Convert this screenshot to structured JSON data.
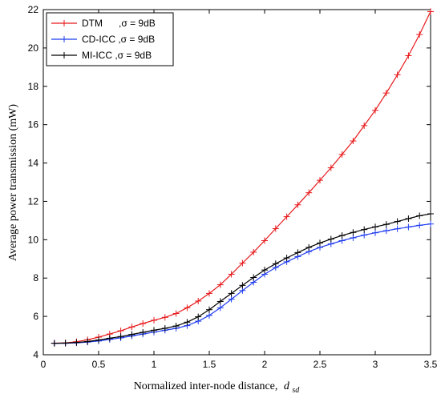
{
  "chart_data": {
    "type": "line",
    "xlabel": "Normalized inter-node distance,",
    "xlabel_symbol": "d",
    "xlabel_subscript": "sd",
    "ylabel": "Average power transmission (mW)",
    "xlim": [
      0,
      3.5
    ],
    "ylim": [
      4,
      22
    ],
    "xticks": [
      0,
      0.5,
      1,
      1.5,
      2,
      2.5,
      3,
      3.5
    ],
    "xtick_labels": [
      "0",
      "0.5",
      "1",
      "1.5",
      "2",
      "2.5",
      "3",
      "3.5"
    ],
    "yticks": [
      4,
      6,
      8,
      10,
      12,
      14,
      16,
      18,
      20,
      22
    ],
    "ytick_labels": [
      "4",
      "6",
      "8",
      "10",
      "12",
      "14",
      "16",
      "18",
      "20",
      "22"
    ],
    "grid": false,
    "legend_position": "top-left",
    "x": [
      0.1,
      0.2,
      0.3,
      0.4,
      0.5,
      0.6,
      0.7,
      0.8,
      0.9,
      1.0,
      1.1,
      1.2,
      1.3,
      1.4,
      1.5,
      1.6,
      1.7,
      1.8,
      1.9,
      2.0,
      2.1,
      2.2,
      2.3,
      2.4,
      2.5,
      2.6,
      2.7,
      2.8,
      2.9,
      3.0,
      3.1,
      3.2,
      3.3,
      3.4,
      3.5
    ],
    "series": [
      {
        "name": "DTM      ,σ = 9dB",
        "color": "#e8191b",
        "values": [
          4.6,
          4.62,
          4.68,
          4.78,
          4.92,
          5.08,
          5.25,
          5.45,
          5.63,
          5.8,
          5.95,
          6.15,
          6.45,
          6.8,
          7.2,
          7.65,
          8.2,
          8.78,
          9.35,
          9.95,
          10.58,
          11.2,
          11.82,
          12.45,
          13.1,
          13.75,
          14.45,
          15.15,
          15.95,
          16.75,
          17.65,
          18.6,
          19.6,
          20.7,
          21.9
        ]
      },
      {
        "name": "CD-ICC ,σ = 9dB",
        "color": "#1f3cf0",
        "values": [
          4.6,
          4.6,
          4.62,
          4.66,
          4.72,
          4.8,
          4.88,
          4.98,
          5.08,
          5.18,
          5.28,
          5.38,
          5.52,
          5.75,
          6.05,
          6.45,
          6.9,
          7.35,
          7.78,
          8.2,
          8.55,
          8.85,
          9.12,
          9.38,
          9.6,
          9.78,
          9.95,
          10.1,
          10.24,
          10.36,
          10.47,
          10.57,
          10.66,
          10.75,
          10.82
        ]
      },
      {
        "name": "MI-ICC ,σ = 9dB",
        "color": "#000000",
        "values": [
          4.6,
          4.61,
          4.64,
          4.69,
          4.77,
          4.86,
          4.95,
          5.06,
          5.17,
          5.28,
          5.38,
          5.5,
          5.7,
          5.98,
          6.35,
          6.78,
          7.2,
          7.62,
          8.03,
          8.42,
          8.75,
          9.05,
          9.33,
          9.6,
          9.83,
          10.03,
          10.22,
          10.38,
          10.53,
          10.67,
          10.8,
          10.95,
          11.1,
          11.25,
          11.35
        ]
      }
    ]
  }
}
